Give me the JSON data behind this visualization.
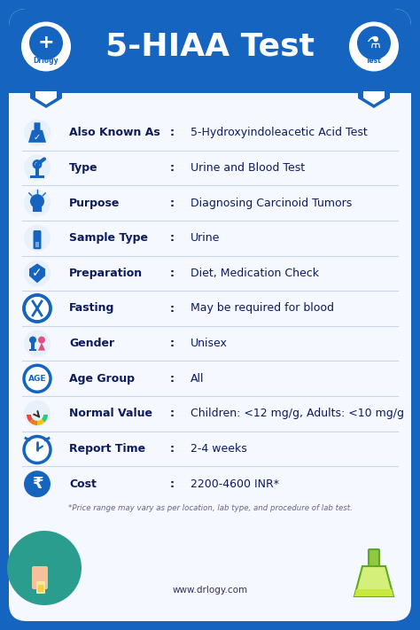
{
  "title": "5-HIAA Test",
  "bg_outer": "#1565c0",
  "bg_inner": "#f5f8ff",
  "title_color": "#0d1b5e",
  "label_color": "#0d1b5e",
  "value_color": "#0d1b5e",
  "icon_color": "#1565c0",
  "header_blue": "#1565c0",
  "rows": [
    {
      "label": "Also Known As",
      "colon": ":",
      "value": "5-Hydroxyindoleacetic Acid Test"
    },
    {
      "label": "Type",
      "colon": ":",
      "value": "Urine and Blood Test"
    },
    {
      "label": "Purpose",
      "colon": ":",
      "value": "Diagnosing Carcinoid Tumors"
    },
    {
      "label": "Sample Type",
      "colon": ":",
      "value": "Urine"
    },
    {
      "label": "Preparation",
      "colon": ":",
      "value": "Diet, Medication Check"
    },
    {
      "label": "Fasting",
      "colon": ":",
      "value": "May be required for blood"
    },
    {
      "label": "Gender",
      "colon": ":",
      "value": "Unisex"
    },
    {
      "label": "Age Group",
      "colon": ":",
      "value": "All"
    },
    {
      "label": "Normal Value",
      "colon": ":",
      "value": "Children: <12 mg/g, Adults: <10 mg/g"
    },
    {
      "label": "Report Time",
      "colon": ":",
      "value": "2-4 weeks"
    },
    {
      "label": "Cost",
      "colon": ":",
      "value": "2200-4600 INR*"
    }
  ],
  "footnote": "*Price range may vary as per location, lab type, and procedure of lab test.",
  "website": "www.drlogy.com",
  "gauge_colors": [
    "#e74c3c",
    "#e67e22",
    "#f1c40f",
    "#2ecc71"
  ],
  "teal_circle": "#2a9d8f",
  "flask_color": "#90c840"
}
